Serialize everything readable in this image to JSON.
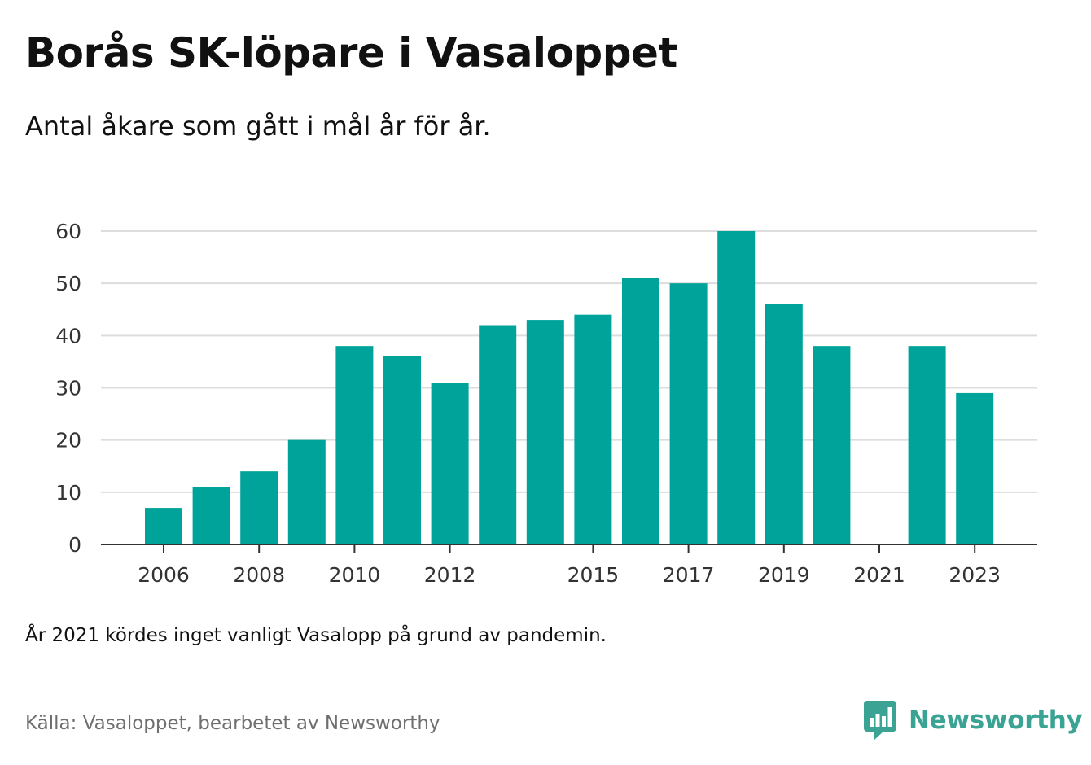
{
  "title": "Borås SK-löpare i Vasaloppet",
  "subtitle": "Antal åkare som gått i mål år för år.",
  "note": "År 2021 kördes inget vanligt Vasalopp på grund av pandemin.",
  "source": "Källa: Vasaloppet, bearbetet av Newsworthy",
  "logo": {
    "text": "Newsworthy",
    "icon": "chart-bubble-icon",
    "color": "#3aa394"
  },
  "chart_data": {
    "type": "bar",
    "categories": [
      "2006",
      "2007",
      "2008",
      "2009",
      "2010",
      "2011",
      "2012",
      "2013",
      "2014",
      "2015",
      "2016",
      "2017",
      "2018",
      "2019",
      "2020",
      "2021",
      "2022",
      "2023"
    ],
    "values": [
      7,
      11,
      14,
      20,
      38,
      36,
      31,
      42,
      43,
      44,
      51,
      50,
      60,
      46,
      38,
      null,
      38,
      29
    ],
    "x_tick_labels": [
      "2006",
      "2008",
      "2010",
      "2012",
      "2015",
      "2017",
      "2019",
      "2021",
      "2023"
    ],
    "y_ticks": [
      0,
      10,
      20,
      30,
      40,
      50,
      60
    ],
    "ylim": [
      0,
      60
    ],
    "grid": true,
    "bar_color": "#00a39a",
    "grid_color": "#dddddd",
    "axis_color": "#333333"
  }
}
